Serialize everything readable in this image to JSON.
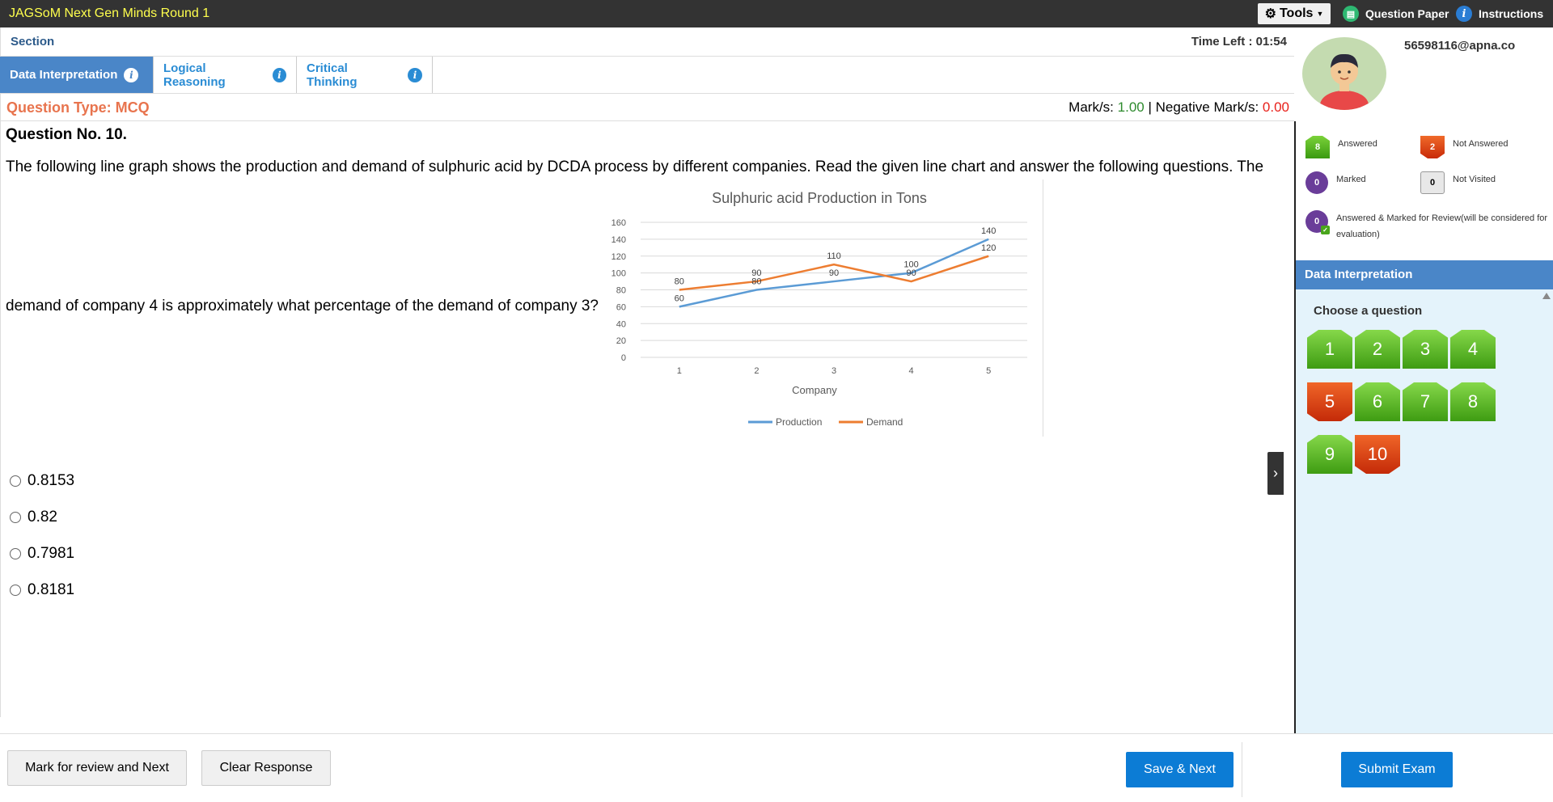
{
  "header": {
    "app_title": "JAGSoM Next Gen Minds Round 1",
    "tools_label": "Tools",
    "question_paper_label": "Question Paper",
    "instructions_label": "Instructions"
  },
  "section": {
    "label": "Section",
    "time_left_label": "Time Left : 01:54"
  },
  "tabs": [
    {
      "label": "Data Interpretation",
      "active": true
    },
    {
      "label": "Logical Reasoning",
      "active": false
    },
    {
      "label": "Critical Thinking",
      "active": false
    }
  ],
  "question": {
    "type_label": "Question Type: MCQ",
    "marks_label": "Mark/s:",
    "marks_value": "1.00",
    "separator": "|",
    "negative_label": "Negative Mark/s:",
    "negative_value": "0.00",
    "number_label": "Question No. 10.",
    "text_line1": "The following line graph shows the production and demand of sulphuric acid by DCDA process by different companies. Read the given line chart and answer the following questions. The",
    "text_line2": "demand of company 4 is approximately what percentage of the demand of company 3?",
    "options": [
      "0.8153",
      "0.82",
      "0.7981",
      "0.8181"
    ]
  },
  "chart_data": {
    "type": "line",
    "title": "Sulphuric acid Production in Tons",
    "xlabel": "Company",
    "ylabel": "",
    "categories": [
      "1",
      "2",
      "3",
      "4",
      "5"
    ],
    "ylim": [
      0,
      160
    ],
    "yticks": [
      0,
      20,
      40,
      60,
      80,
      100,
      120,
      140,
      160
    ],
    "grid": true,
    "legend_position": "bottom",
    "series": [
      {
        "name": "Production",
        "values": [
          60,
          80,
          90,
          100,
          140
        ],
        "color": "#5b9bd5"
      },
      {
        "name": "Demand",
        "values": [
          80,
          90,
          110,
          90,
          120
        ],
        "color": "#ed7d31"
      }
    ]
  },
  "footer": {
    "mark_review_label": "Mark for review and Next",
    "clear_label": "Clear Response",
    "save_next_label": "Save & Next",
    "submit_label": "Submit Exam"
  },
  "sidebar": {
    "email": "56598116@apna.co",
    "legend": {
      "answered_count": "8",
      "answered_label": "Answered",
      "not_answered_count": "2",
      "not_answered_label": "Not Answered",
      "marked_count": "0",
      "marked_label": "Marked",
      "not_visited_count": "0",
      "not_visited_label": "Not Visited",
      "answered_marked_count": "0",
      "answered_marked_label": "Answered & Marked for Review(will be considered for evaluation)"
    },
    "section_title": "Data Interpretation",
    "choose_label": "Choose a question",
    "palette": [
      {
        "num": "1",
        "status": "answered"
      },
      {
        "num": "2",
        "status": "answered"
      },
      {
        "num": "3",
        "status": "answered"
      },
      {
        "num": "4",
        "status": "answered"
      },
      {
        "num": "5",
        "status": "not-answered"
      },
      {
        "num": "6",
        "status": "answered"
      },
      {
        "num": "7",
        "status": "answered"
      },
      {
        "num": "8",
        "status": "answered"
      },
      {
        "num": "9",
        "status": "answered"
      },
      {
        "num": "10",
        "status": "not-answered"
      }
    ],
    "colors": {
      "answered": "#4aa51c",
      "not_answered": "#d8380f",
      "marked": "#6a3d99",
      "section_header": "#4a86c8"
    }
  }
}
